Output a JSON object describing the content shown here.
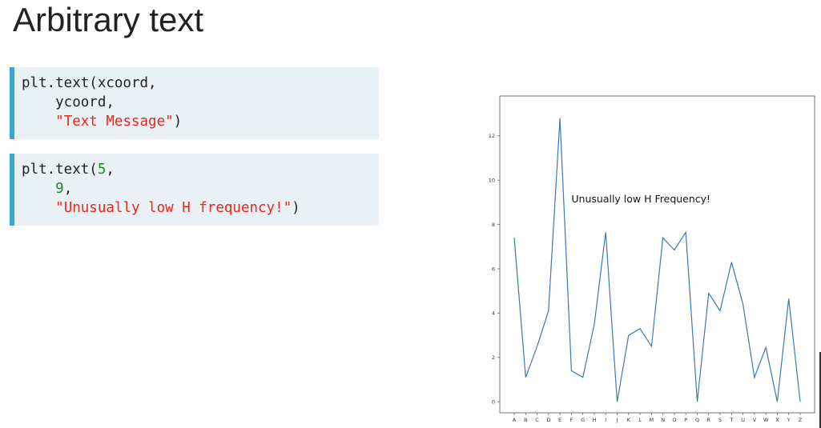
{
  "slide": {
    "title": "Arbitrary text"
  },
  "code_blocks": [
    {
      "line1_prefix": "plt.text(xcoord,",
      "line2": "    ycoord,",
      "line3_indent": "    ",
      "line3_str": "\"Text Message\"",
      "line3_end": ")"
    },
    {
      "line1_prefix": "plt.text(",
      "line1_num": "5",
      "line1_end": ",",
      "line2_indent": "    ",
      "line2_num": "9",
      "line2_end": ",",
      "line3_indent": "    ",
      "line3_str": "\"Unusually low H frequency!\"",
      "line3_end": ")"
    }
  ],
  "colors": {
    "line": "#3b78b4",
    "code_bg": "#e9f1f4",
    "code_accent": "#3aa6d6",
    "string": "#e8281c",
    "number": "#1f8a1f"
  },
  "chart_data": {
    "type": "line",
    "categories": [
      "A",
      "B",
      "C",
      "D",
      "E",
      "F",
      "G",
      "H",
      "I",
      "J",
      "K",
      "L",
      "M",
      "N",
      "O",
      "P",
      "Q",
      "R",
      "S",
      "T",
      "U",
      "V",
      "W",
      "X",
      "Y",
      "Z"
    ],
    "values": [
      7.4,
      1.1,
      2.5,
      4.1,
      12.8,
      1.4,
      1.1,
      3.5,
      7.65,
      0.0,
      3.0,
      3.3,
      2.5,
      7.4,
      6.85,
      7.65,
      0.0,
      4.9,
      4.1,
      6.3,
      4.4,
      1.1,
      2.45,
      0.0,
      4.65,
      0.0
    ],
    "yticks": [
      "0",
      "2",
      "4",
      "6",
      "8",
      "10",
      "12"
    ],
    "ylim": [
      -0.5,
      13.8
    ],
    "annotation": {
      "x": 5,
      "y": 9,
      "text": "Unusually low H Frequency!"
    },
    "grid": false
  }
}
